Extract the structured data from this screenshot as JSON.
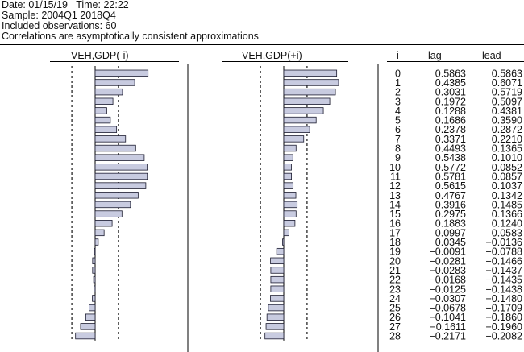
{
  "header": {
    "date_line": "Date: 01/15/19   Time: 22:22",
    "sample_line": "Sample: 2004Q1 2018Q4",
    "obs_line": "Included observations: 60",
    "note_line": "Correlations are asymptotically consistent approximations"
  },
  "columns": {
    "lag_chart_title": "VEH,GDP(-i)",
    "lead_chart_title": "VEH,GDP(+i)",
    "i": "i",
    "lag": "lag",
    "lead": "lead"
  },
  "chart_data": {
    "type": "bar",
    "orientation": "horizontal",
    "categories": [
      0,
      1,
      2,
      3,
      4,
      5,
      6,
      7,
      8,
      9,
      10,
      11,
      12,
      13,
      14,
      15,
      16,
      17,
      18,
      19,
      20,
      21,
      22,
      23,
      24,
      25,
      26,
      27,
      28
    ],
    "series": [
      {
        "name": "lag",
        "values": [
          0.5863,
          0.4385,
          0.3031,
          0.1972,
          0.1288,
          0.1686,
          0.2378,
          0.3371,
          0.4493,
          0.5438,
          0.5772,
          0.5781,
          0.5615,
          0.4767,
          0.3916,
          0.2975,
          0.1883,
          0.0997,
          0.0345,
          -0.0091,
          -0.0281,
          -0.0283,
          -0.0168,
          -0.0125,
          -0.0307,
          -0.0678,
          -0.1041,
          -0.1611,
          -0.2171
        ],
        "labels": [
          "0.5863",
          "0.4385",
          "0.3031",
          "0.1972",
          "0.1288",
          "0.1686",
          "0.2378",
          "0.3371",
          "0.4493",
          "0.5438",
          "0.5772",
          "0.5781",
          "0.5615",
          "0.4767",
          "0.3916",
          "0.2975",
          "0.1883",
          "0.0997",
          "0.0345",
          "−0.0091",
          "−0.0281",
          "−0.0283",
          "−0.0168",
          "−0.0125",
          "−0.0307",
          "−0.0678",
          "−0.1041",
          "−0.1611",
          "−0.2171"
        ]
      },
      {
        "name": "lead",
        "values": [
          0.5863,
          0.6071,
          0.5719,
          0.5097,
          0.4381,
          0.359,
          0.2872,
          0.221,
          0.1365,
          0.101,
          0.0852,
          0.0857,
          0.1037,
          0.1342,
          0.1485,
          0.1366,
          0.124,
          0.0583,
          -0.0136,
          -0.0788,
          -0.1466,
          -0.1437,
          -0.1435,
          -0.1438,
          -0.148,
          -0.1709,
          -0.186,
          -0.196,
          -0.2082
        ],
        "labels": [
          "0.5863",
          "0.6071",
          "0.5719",
          "0.5097",
          "0.4381",
          "0.3590",
          "0.2872",
          "0.2210",
          "0.1365",
          "0.1010",
          "0.0852",
          "0.0857",
          "0.1037",
          "0.1342",
          "0.1485",
          "0.1366",
          "0.1240",
          "0.0583",
          "−0.0136",
          "−0.0788",
          "−0.1466",
          "−0.1437",
          "−0.1435",
          "−0.1438",
          "−0.1480",
          "−0.1709",
          "−0.1860",
          "−0.1960",
          "−0.2082"
        ]
      }
    ],
    "bounds": 0.2582,
    "xlim": [
      -0.6,
      0.6
    ],
    "bar_fill": "#c8cbe0",
    "bar_stroke": "#1a1a2e"
  }
}
